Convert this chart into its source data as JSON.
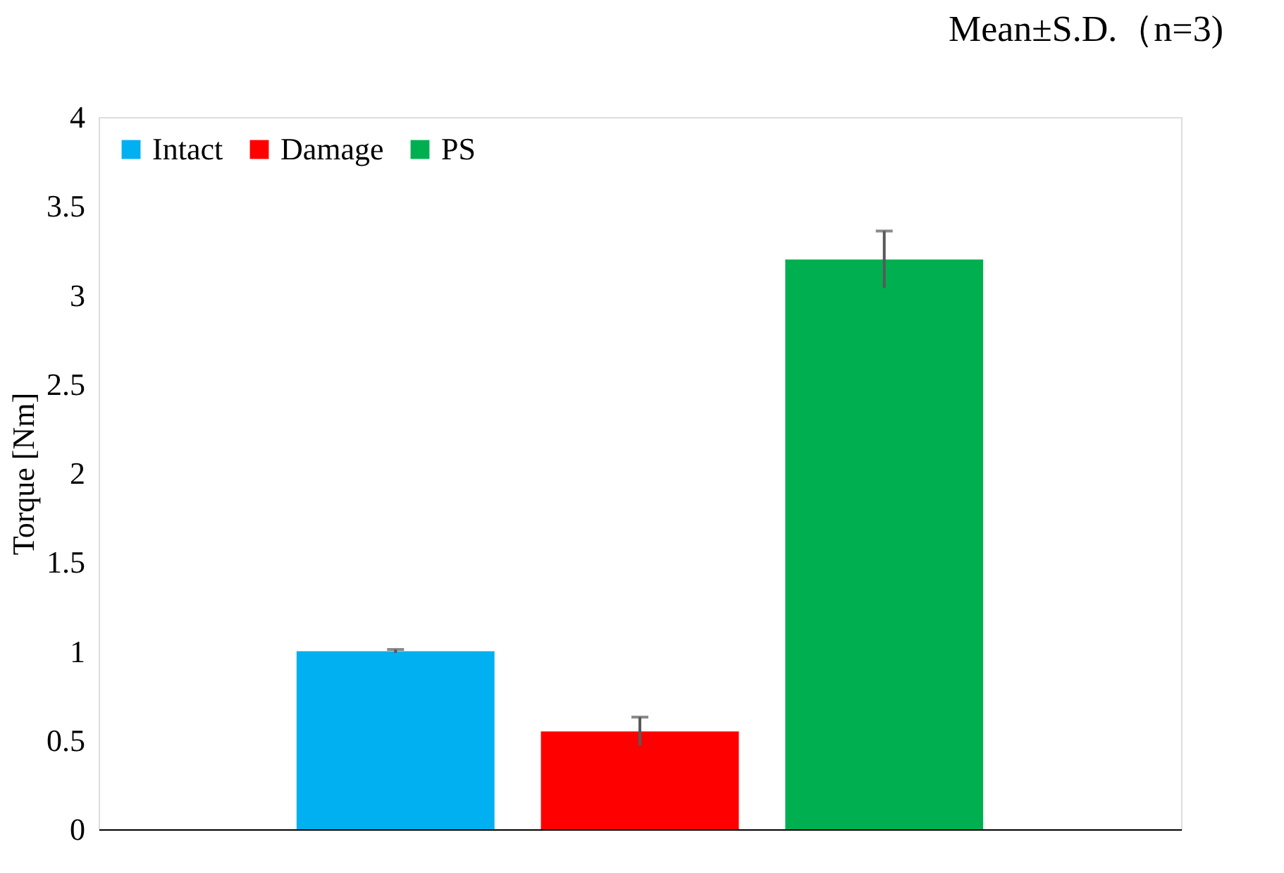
{
  "chart_data": {
    "type": "bar",
    "ylabel": "Torque [Nm]",
    "annotations": [
      "Mean±S.D.（n=3)"
    ],
    "categories": [
      null
    ],
    "series": [
      {
        "name": "Intact",
        "color": "#00b0f0",
        "values": [
          1.0
        ],
        "errors": [
          0.01
        ]
      },
      {
        "name": "Damage",
        "color": "#ff0000",
        "values": [
          0.55
        ],
        "errors": [
          0.08
        ]
      },
      {
        "name": "PS",
        "color": "#00b050",
        "values": [
          3.2
        ],
        "errors": [
          0.16
        ]
      }
    ],
    "ylim": [
      0,
      4
    ],
    "yticks": [
      0,
      0.5,
      1,
      1.5,
      2,
      2.5,
      3,
      3.5,
      4
    ],
    "grid": false,
    "legend": "top left"
  }
}
